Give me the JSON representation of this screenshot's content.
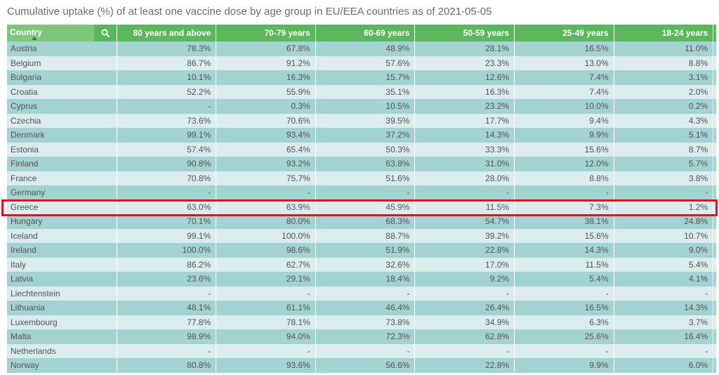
{
  "chart_data": {
    "type": "table",
    "title": "Cumulative uptake (%) of at least one vaccine dose by age group in EU/EEA countries as of 2021-05-05",
    "columns": [
      "Country",
      "80 years and above",
      "70-79 years",
      "60-69 years",
      "50-59 years",
      "25-49 years",
      "18-24 years"
    ],
    "rows": [
      {
        "country": "Austria",
        "values": [
          "78.3%",
          "67.8%",
          "48.9%",
          "28.1%",
          "16.5%",
          "11.0%"
        ]
      },
      {
        "country": "Belgium",
        "values": [
          "86.7%",
          "91.2%",
          "57.6%",
          "23.3%",
          "13.0%",
          "8.8%"
        ]
      },
      {
        "country": "Bulgaria",
        "values": [
          "10.1%",
          "16.3%",
          "15.7%",
          "12.6%",
          "7.4%",
          "3.1%"
        ]
      },
      {
        "country": "Croatia",
        "values": [
          "52.2%",
          "55.9%",
          "35.1%",
          "16.3%",
          "7.4%",
          "2.0%"
        ]
      },
      {
        "country": "Cyprus",
        "values": [
          "-",
          "0.3%",
          "10.5%",
          "23.2%",
          "10.0%",
          "0.2%"
        ]
      },
      {
        "country": "Czechia",
        "values": [
          "73.6%",
          "70.6%",
          "39.5%",
          "17.7%",
          "9.4%",
          "4.3%"
        ]
      },
      {
        "country": "Denmark",
        "values": [
          "99.1%",
          "93.4%",
          "37.2%",
          "14.3%",
          "9.9%",
          "5.1%"
        ]
      },
      {
        "country": "Estonia",
        "values": [
          "57.4%",
          "65.4%",
          "50.3%",
          "33.3%",
          "15.6%",
          "8.7%"
        ]
      },
      {
        "country": "Finland",
        "values": [
          "90.8%",
          "93.2%",
          "63.8%",
          "31.0%",
          "12.0%",
          "5.7%"
        ]
      },
      {
        "country": "France",
        "values": [
          "70.8%",
          "75.7%",
          "51.6%",
          "28.0%",
          "8.8%",
          "3.8%"
        ]
      },
      {
        "country": "Germany",
        "values": [
          "-",
          "-",
          "-",
          "-",
          "-",
          "-"
        ]
      },
      {
        "country": "Greece",
        "values": [
          "63.0%",
          "63.9%",
          "45.9%",
          "11.5%",
          "7.3%",
          "1.2%"
        ]
      },
      {
        "country": "Hungary",
        "values": [
          "70.1%",
          "80.0%",
          "68.3%",
          "54.7%",
          "38.1%",
          "24.8%"
        ]
      },
      {
        "country": "Iceland",
        "values": [
          "99.1%",
          "100.0%",
          "88.7%",
          "39.2%",
          "15.6%",
          "10.7%"
        ]
      },
      {
        "country": "Ireland",
        "values": [
          "100.0%",
          "98.6%",
          "51.9%",
          "22.8%",
          "14.3%",
          "9.0%"
        ]
      },
      {
        "country": "Italy",
        "values": [
          "86.2%",
          "62.7%",
          "32.6%",
          "17.0%",
          "11.5%",
          "5.4%"
        ]
      },
      {
        "country": "Latvia",
        "values": [
          "23.6%",
          "29.1%",
          "18.4%",
          "9.2%",
          "5.4%",
          "4.1%"
        ]
      },
      {
        "country": "Liechtenstein",
        "values": [
          "-",
          "-",
          "-",
          "-",
          "-",
          "-"
        ]
      },
      {
        "country": "Lithuania",
        "values": [
          "48.1%",
          "61.1%",
          "46.4%",
          "26.4%",
          "16.5%",
          "14.3%"
        ]
      },
      {
        "country": "Luxembourg",
        "values": [
          "77.8%",
          "78.1%",
          "73.8%",
          "34.9%",
          "6.3%",
          "3.7%"
        ]
      },
      {
        "country": "Malta",
        "values": [
          "98.9%",
          "94.0%",
          "72.3%",
          "62.8%",
          "25.6%",
          "16.4%"
        ]
      },
      {
        "country": "Netherlands",
        "values": [
          "-",
          "-",
          "-",
          "-",
          "-",
          "-"
        ]
      },
      {
        "country": "Norway",
        "values": [
          "80.8%",
          "93.6%",
          "56.6%",
          "22.8%",
          "9.9%",
          "6.0%"
        ]
      }
    ],
    "highlighted_row": "Greece",
    "colors": {
      "header": "#5cb85c",
      "row_dark": "#a3d2d3",
      "row_light": "#daeced",
      "highlight_border": "#e0141e"
    }
  },
  "icons": {
    "search": "search-icon",
    "sort": "sort-asc-icon"
  }
}
